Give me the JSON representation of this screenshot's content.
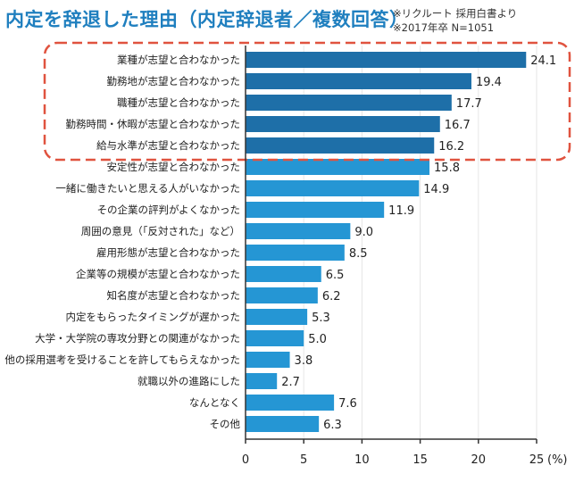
{
  "title": "内定を辞退した理由（内定辞退者／複数回答）",
  "notes": [
    "※リクルート 採用白書より",
    "※2017年卒 N=1051"
  ],
  "chart_data": {
    "type": "bar",
    "orientation": "horizontal",
    "categories": [
      "業種が志望と合わなかった",
      "勤務地が志望と合わなかった",
      "職種が志望と合わなかった",
      "勤務時間・休暇が志望と合わなかった",
      "給与水準が志望と合わなかった",
      "安定性が志望と合わなかった",
      "一緒に働きたいと思える人がいなかった",
      "その企業の評判がよくなかった",
      "周囲の意見（「反対された」など）",
      "雇用形態が志望と合わなかった",
      "企業等の規模が志望と合わなかった",
      "知名度が志望と合わなかった",
      "内定をもらったタイミングが遅かった",
      "大学・大学院の専攻分野との関連がなかった",
      "他の採用選考を受けることを許してもらえなかった",
      "就職以外の進路にした",
      "なんとなく",
      "その他"
    ],
    "values": [
      24.1,
      19.4,
      17.7,
      16.7,
      16.2,
      15.8,
      14.9,
      11.9,
      9.0,
      8.5,
      6.5,
      6.2,
      5.3,
      5.0,
      3.8,
      2.7,
      7.6,
      6.3
    ],
    "value_labels": [
      "24.1",
      "19.4",
      "17.7",
      "16.7",
      "16.2",
      "15.8",
      "14.9",
      "11.9",
      "9.0",
      "8.5",
      "6.5",
      "6.2",
      "5.3",
      "5.0",
      "3.8",
      "2.7",
      "7.6",
      "6.3"
    ],
    "highlighted_count": 5,
    "xlim": [
      0,
      25
    ],
    "xticks": [
      "0",
      "5",
      "10",
      "15",
      "20",
      "25"
    ],
    "xunit": "(%)",
    "colors": {
      "highlight_bar": "#1e6fa8",
      "bar": "#2596d4",
      "highlight_box": "#e0533f",
      "axis": "#333333",
      "grid": "#e6e6e6"
    }
  }
}
